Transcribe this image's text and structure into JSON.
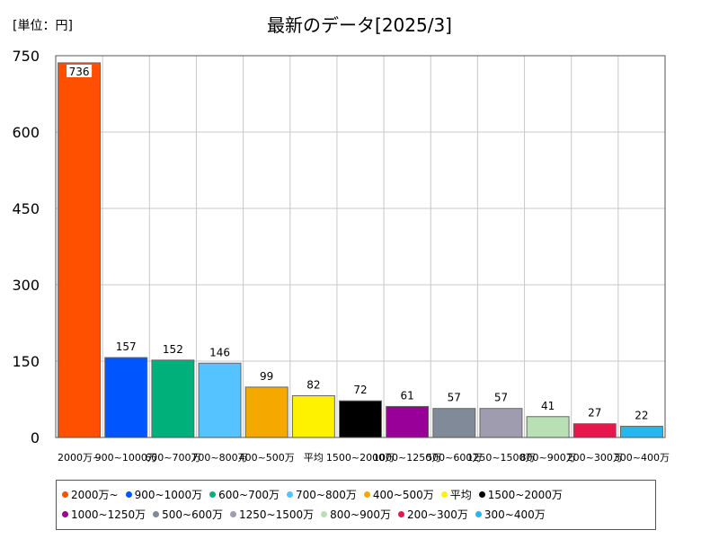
{
  "chart_data": {
    "type": "bar",
    "title": "最新のデータ[2025/3]",
    "unit_label": "[単位：円]",
    "categories": [
      "2000万~",
      "900~1000万",
      "600~700万",
      "700~800万",
      "400~500万",
      "平均",
      "1500~2000万",
      "1000~1250万",
      "500~600万",
      "1250~1500万",
      "800~900万",
      "200~300万",
      "300~400万"
    ],
    "values": [
      736,
      157,
      152,
      146,
      99,
      82,
      72,
      61,
      57,
      57,
      41,
      27,
      22
    ],
    "colors": [
      "#ff5000",
      "#0055ff",
      "#00b07a",
      "#55c3ff",
      "#f5a800",
      "#fff200",
      "#000000",
      "#990099",
      "#808a98",
      "#a09cb0",
      "#b9dfb5",
      "#e8174b",
      "#26b6f0"
    ],
    "ylim": [
      0,
      750
    ],
    "yticks": [
      0,
      150,
      300,
      450,
      600,
      750
    ],
    "grid": true,
    "legend": "bottom"
  }
}
